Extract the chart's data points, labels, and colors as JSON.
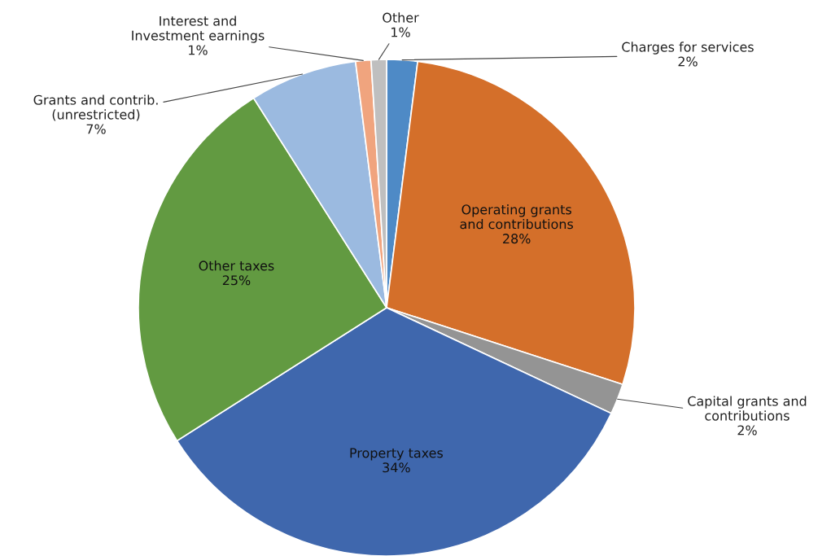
{
  "chart_data": {
    "type": "pie",
    "categories": [
      "Charges for services",
      "Operating grants\nand contributions",
      "Capital grants and\ncontributions",
      "Property taxes",
      "Other taxes",
      "Grants and contrib.\n(unrestricted)",
      "Interest and\nInvestment earnings",
      "Other"
    ],
    "values": [
      2,
      28,
      2,
      34,
      25,
      7,
      1,
      1
    ],
    "value_labels": [
      "2%",
      "28%",
      "2%",
      "34%",
      "25%",
      "7%",
      "1%",
      "1%"
    ],
    "colors": [
      "#4e8ac6",
      "#d46f2a",
      "#949494",
      "#3f67ad",
      "#629a41",
      "#9bbae0",
      "#f0a47e",
      "#bfbfbf"
    ]
  }
}
